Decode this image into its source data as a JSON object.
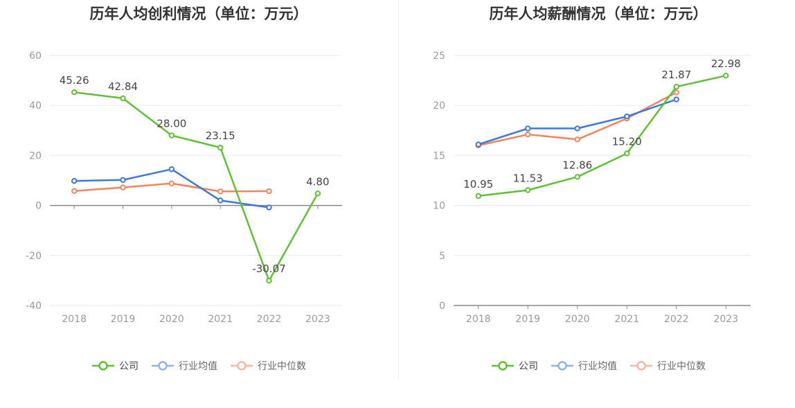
{
  "colors": {
    "company": "#5dc133",
    "industry_avg": "#3b78e0",
    "industry_median": "#f2845c",
    "industry_avg_legend": "#8db3ef",
    "industry_median_legend": "#f7b7a0",
    "grid": "#e6eaf2",
    "axis": "#888888",
    "label": "#999999",
    "value_label": "#444444"
  },
  "legend": {
    "company": "公司",
    "industry_avg": "行业均值",
    "industry_median": "行业中位数"
  },
  "chart_data": [
    {
      "type": "line",
      "title": "历年人均创利情况（单位：万元）",
      "categories": [
        "2018",
        "2019",
        "2020",
        "2021",
        "2022",
        "2023"
      ],
      "ylim": [
        -40,
        60
      ],
      "yticks": [
        -40,
        -20,
        0,
        20,
        40,
        60
      ],
      "ytick_labels": [
        "-40",
        "-20",
        "0",
        "20",
        "40",
        "60"
      ],
      "series": [
        {
          "name": "公司",
          "key": "company",
          "values": [
            45.26,
            42.84,
            28.0,
            23.15,
            -30.07,
            4.8
          ],
          "labels": [
            "45.26",
            "42.84",
            "28.00",
            "23.15",
            "-30.07",
            "4.80"
          ]
        },
        {
          "name": "行业均值",
          "key": "industry_avg",
          "values": [
            9.8,
            10.2,
            14.5,
            2.0,
            -0.8,
            null
          ]
        },
        {
          "name": "行业中位数",
          "key": "industry_median",
          "values": [
            5.8,
            7.2,
            8.8,
            5.6,
            5.7,
            null
          ]
        }
      ]
    },
    {
      "type": "line",
      "title": "历年人均薪酬情况（单位：万元）",
      "categories": [
        "2018",
        "2019",
        "2020",
        "2021",
        "2022",
        "2023"
      ],
      "ylim": [
        0,
        25
      ],
      "yticks": [
        0,
        5,
        10,
        15,
        20,
        25
      ],
      "ytick_labels": [
        "0",
        "5",
        "10",
        "15",
        "20",
        "25"
      ],
      "series": [
        {
          "name": "公司",
          "key": "company",
          "values": [
            10.95,
            11.53,
            12.86,
            15.2,
            21.87,
            22.98
          ],
          "labels": [
            "10.95",
            "11.53",
            "12.86",
            "15.20",
            "21.87",
            "22.98"
          ]
        },
        {
          "name": "行业均值",
          "key": "industry_avg",
          "values": [
            16.1,
            17.7,
            17.7,
            18.9,
            20.6,
            null
          ]
        },
        {
          "name": "行业中位数",
          "key": "industry_median",
          "values": [
            16.0,
            17.1,
            16.6,
            18.7,
            21.3,
            null
          ]
        }
      ]
    }
  ]
}
